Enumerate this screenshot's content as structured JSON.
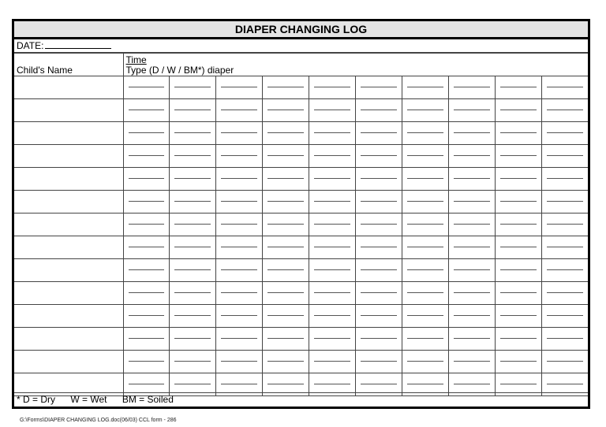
{
  "title": "DIAPER CHANGING LOG",
  "date_label": "DATE:",
  "header": {
    "child_name": "Child's Name",
    "time": "Time",
    "type": "Type (D / W / BM*) diaper"
  },
  "legend": {
    "dry": "* D = Dry",
    "wet": "W = Wet",
    "soiled": "BM = Soiled"
  },
  "footer": "G:\\Forms\\DIAPER CHANGING LOG.doc(06/03)   CCL form - 286"
}
